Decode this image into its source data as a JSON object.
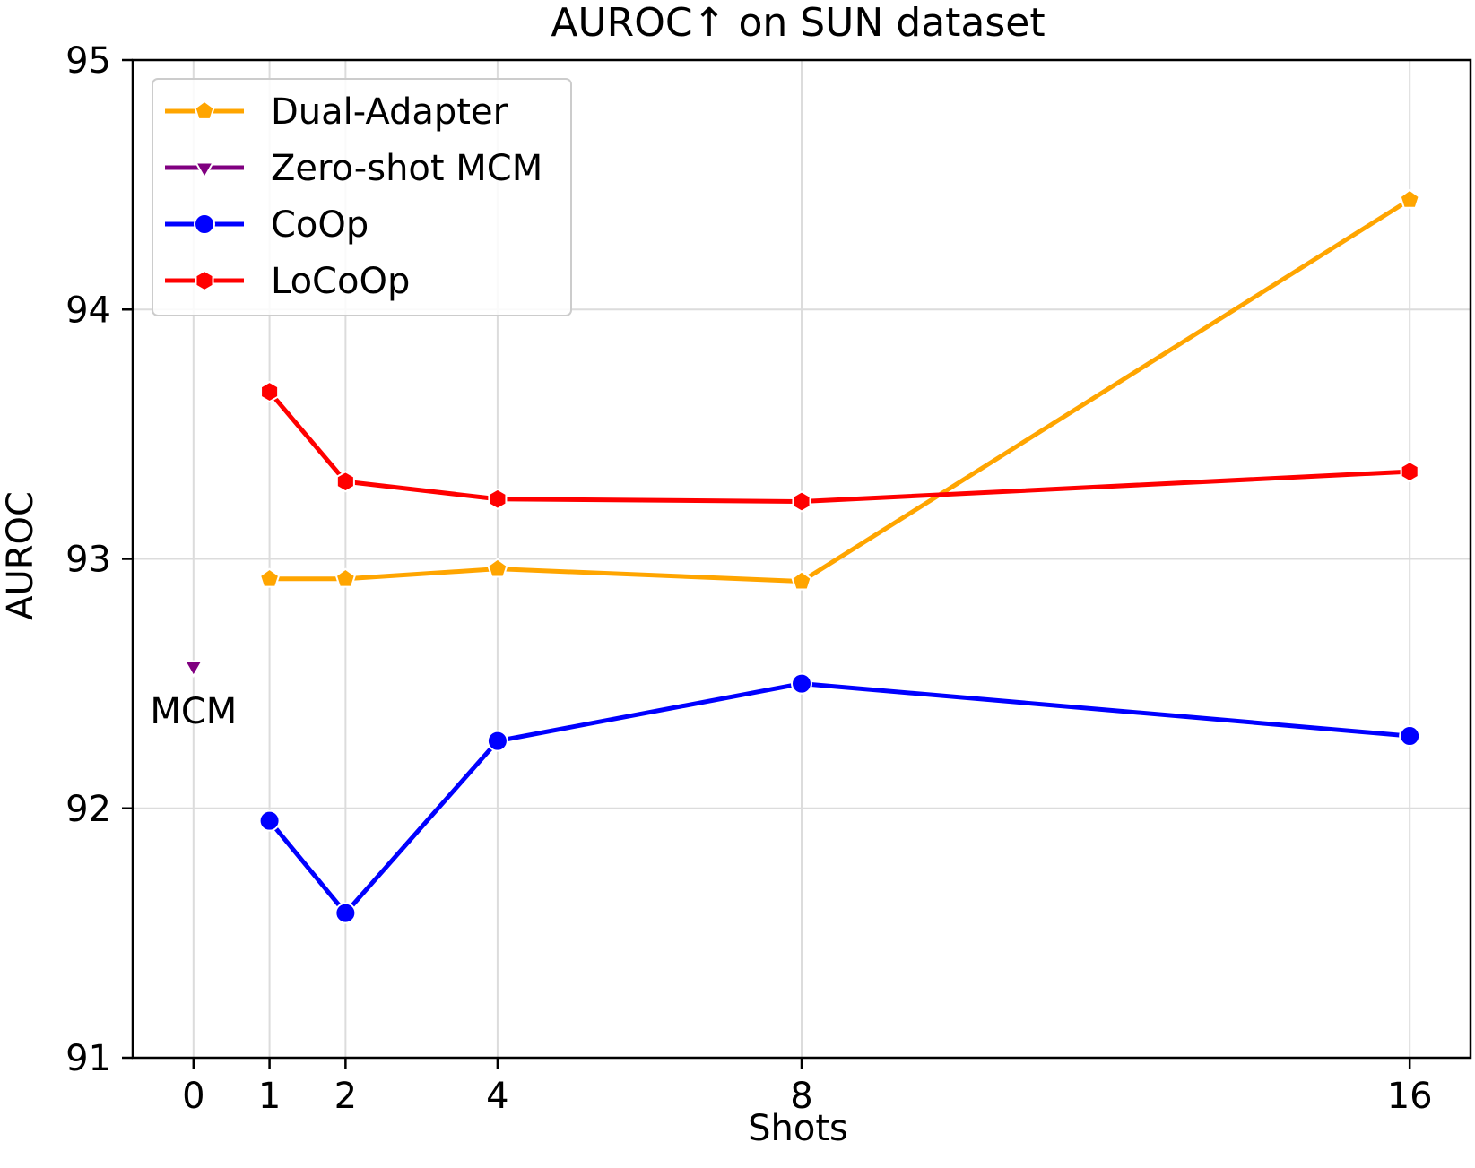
{
  "chart_data": {
    "type": "line",
    "title": "AUROC↑ on SUN dataset",
    "xlabel": "Shots",
    "ylabel": "AUROC",
    "x_ticks": [
      0,
      1,
      2,
      4,
      8,
      16
    ],
    "x_tick_labels": [
      "0",
      "1",
      "2",
      "4",
      "8",
      "16"
    ],
    "y_ticks": [
      91,
      92,
      93,
      94,
      95
    ],
    "y_tick_labels": [
      "91",
      "92",
      "93",
      "94",
      "95"
    ],
    "xlim": [
      -0.8,
      16.8
    ],
    "ylim": [
      91,
      95
    ],
    "grid": true,
    "legend_position": "top-left",
    "series": [
      {
        "name": "Dual-Adapter",
        "color": "#ffa500",
        "marker": "pentagon",
        "x": [
          1,
          2,
          4,
          8,
          16
        ],
        "y": [
          92.92,
          92.92,
          92.96,
          92.91,
          94.44
        ]
      },
      {
        "name": "Zero-shot MCM",
        "color": "#800080",
        "marker": "triangle-down",
        "x": [
          0
        ],
        "y": [
          92.57
        ]
      },
      {
        "name": "CoOp",
        "color": "#0000ff",
        "marker": "circle",
        "x": [
          1,
          2,
          4,
          8,
          16
        ],
        "y": [
          91.95,
          91.58,
          92.27,
          92.5,
          92.29
        ]
      },
      {
        "name": "LoCoOp",
        "color": "#ff0000",
        "marker": "hexagon",
        "x": [
          1,
          2,
          4,
          8,
          16
        ],
        "y": [
          93.67,
          93.31,
          93.24,
          93.23,
          93.35
        ]
      }
    ],
    "annotations": [
      {
        "text": "MCM",
        "x": 0,
        "y": 92.39
      }
    ]
  }
}
